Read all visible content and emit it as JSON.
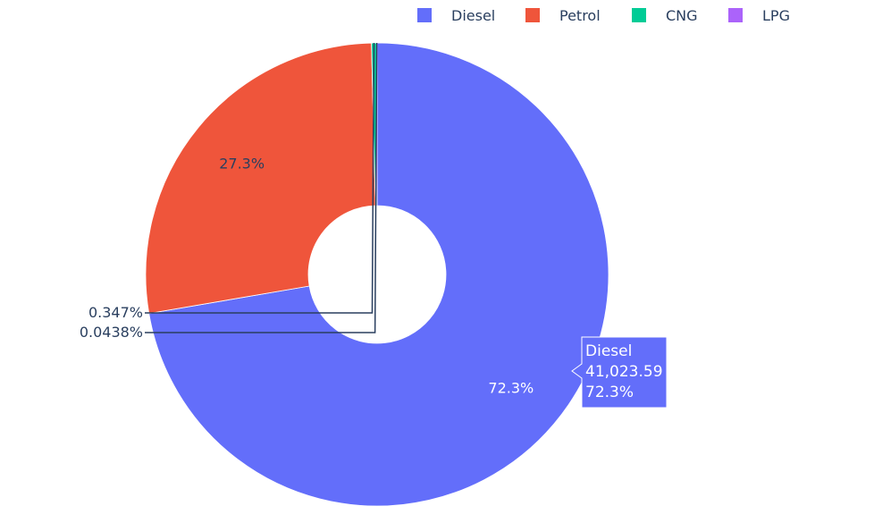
{
  "chart_data": {
    "type": "pie",
    "hole": true,
    "legend": {
      "placement": "top-right",
      "orientation": "horizontal"
    },
    "slices": [
      {
        "label": "Diesel",
        "percent_label": "72.3%",
        "fraction": 0.723,
        "color": "#636efa"
      },
      {
        "label": "Petrol",
        "percent_label": "27.3%",
        "fraction": 0.273,
        "color": "#ef553b"
      },
      {
        "label": "CNG",
        "percent_label": "0.347%",
        "fraction": 0.00347,
        "color": "#00cc96"
      },
      {
        "label": "LPG",
        "percent_label": "0.0438%",
        "fraction": 0.000438,
        "color": "#ab63fa"
      }
    ],
    "hover": {
      "series": "Diesel",
      "value": "41,023.59",
      "percent": "72.3%",
      "color": "#636efa"
    }
  }
}
